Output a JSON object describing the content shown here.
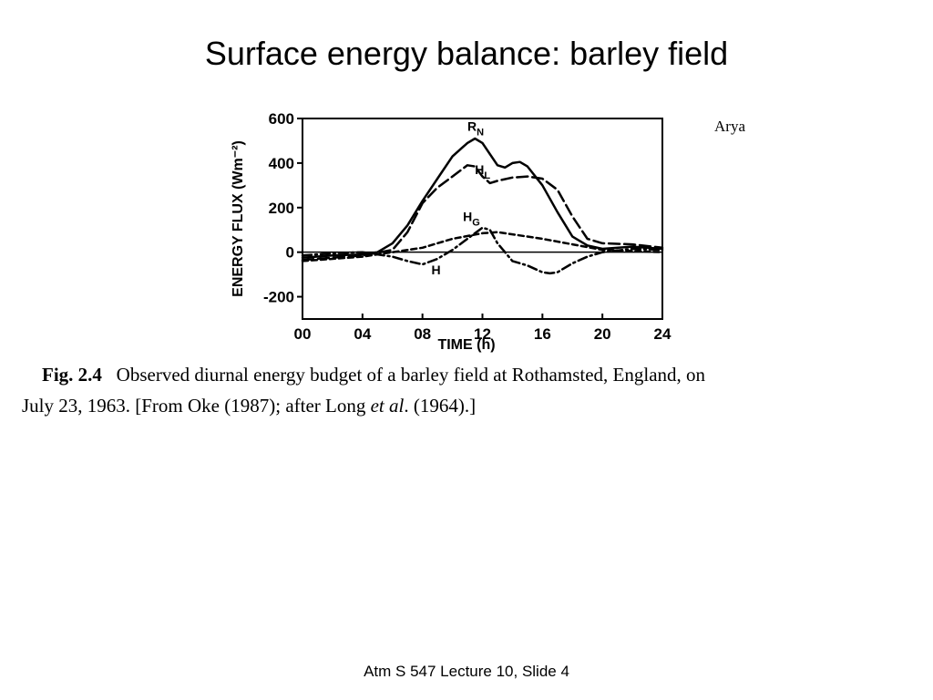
{
  "slide": {
    "title": "Surface energy balance: barley field",
    "credit": "Arya",
    "caption": {
      "fig_label": "Fig. 2.4",
      "line1": "Observed diurnal energy budget of a barley field at Rothamsted, England, on",
      "line2_pre": "July 23, 1963. [From Oke (1987); after Long ",
      "line2_ital": "et al",
      "line2_post": ". (1964).]"
    },
    "footer": "Atm S 547  Lecture 10, Slide 4"
  },
  "chart_data": {
    "type": "line",
    "xlabel": "TIME (h)",
    "ylabel": "ENERGY FLUX (Wm⁻²)",
    "xlim": [
      0,
      24
    ],
    "ylim": [
      -300,
      600
    ],
    "x_ticks": [
      "00",
      "04",
      "08",
      "12",
      "16",
      "20",
      "24"
    ],
    "y_ticks": [
      "600",
      "400",
      "200",
      "0",
      "-200"
    ],
    "zero_line": true,
    "series": [
      {
        "name": "RN",
        "label_main": "R",
        "label_sub": "N",
        "style": "solid",
        "x": [
          0,
          2,
          4,
          5,
          6,
          7,
          8,
          9,
          10,
          11,
          11.5,
          12,
          12.5,
          13,
          13.5,
          14,
          14.5,
          15,
          16,
          17,
          18,
          19,
          20,
          22,
          24
        ],
        "y": [
          -25,
          -15,
          -10,
          0,
          40,
          120,
          230,
          330,
          430,
          490,
          510,
          490,
          440,
          390,
          380,
          400,
          405,
          385,
          300,
          180,
          70,
          30,
          15,
          25,
          15
        ]
      },
      {
        "name": "HL",
        "label_main": "H",
        "label_sub": "L",
        "style": "dashed",
        "x": [
          0,
          4,
          6,
          7,
          8,
          9,
          10,
          11,
          11.5,
          12,
          12.5,
          13,
          14,
          15,
          16,
          17,
          18,
          19,
          20,
          22,
          24
        ],
        "y": [
          -35,
          -15,
          10,
          90,
          220,
          290,
          340,
          390,
          385,
          340,
          310,
          320,
          335,
          340,
          330,
          280,
          160,
          60,
          40,
          35,
          20
        ]
      },
      {
        "name": "HG",
        "label_main": "H",
        "label_sub": "G",
        "style": "short-dash",
        "x": [
          0,
          4,
          8,
          10,
          12,
          13,
          14,
          16,
          18,
          20,
          22,
          24
        ],
        "y": [
          -40,
          -20,
          20,
          60,
          85,
          90,
          80,
          60,
          35,
          10,
          5,
          0
        ]
      },
      {
        "name": "H",
        "label_main": "H",
        "label_sub": "",
        "style": "dash-dot",
        "x": [
          0,
          2,
          4,
          6,
          7,
          8,
          9,
          10,
          11,
          12,
          12.5,
          13,
          14,
          15,
          16,
          16.5,
          17,
          18,
          19,
          20,
          22,
          24
        ],
        "y": [
          -15,
          -5,
          0,
          -20,
          -40,
          -55,
          -30,
          10,
          60,
          110,
          100,
          40,
          -40,
          -60,
          -90,
          -95,
          -90,
          -50,
          -20,
          0,
          15,
          10
        ]
      }
    ]
  }
}
